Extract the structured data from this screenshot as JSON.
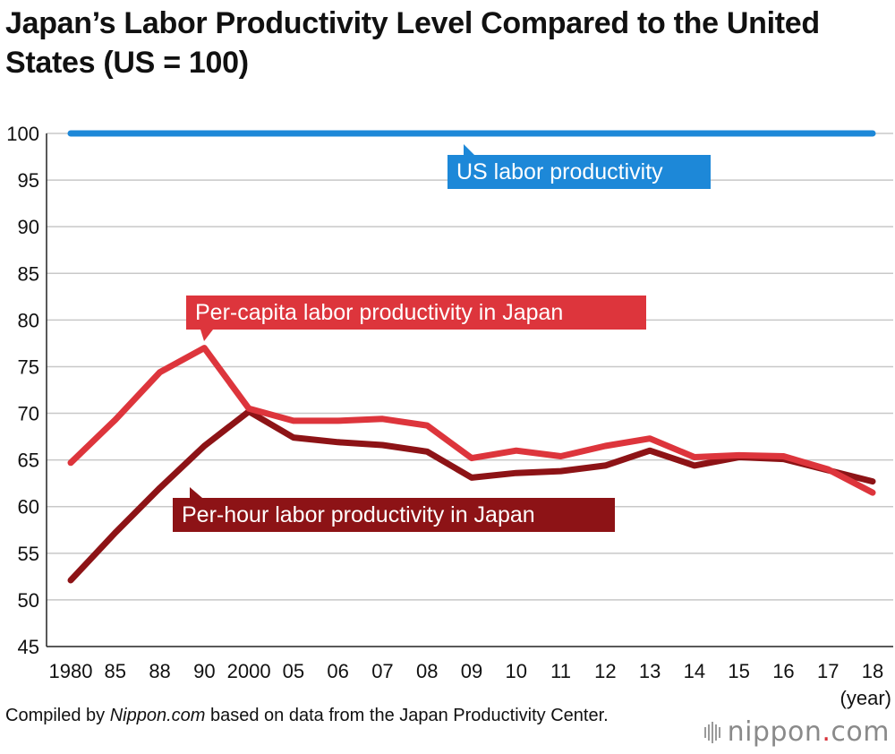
{
  "title": "Japan’s Labor Productivity Level Compared to the United States (US = 100)",
  "chart_data": {
    "type": "line",
    "title": "Japan’s Labor Productivity Level Compared to the United States (US = 100)",
    "xlabel": "(year)",
    "ylabel": "",
    "ylim": [
      45,
      100
    ],
    "yticks": [
      100,
      95,
      90,
      85,
      80,
      75,
      70,
      65,
      60,
      55,
      50,
      45
    ],
    "categories": [
      "1980",
      "85",
      "88",
      "90",
      "2000",
      "05",
      "06",
      "07",
      "08",
      "09",
      "10",
      "11",
      "12",
      "13",
      "14",
      "15",
      "16",
      "17",
      "18"
    ],
    "series": [
      {
        "name": "US labor productivity",
        "color": "#1d88d8",
        "values": [
          100,
          100,
          100,
          100,
          100,
          100,
          100,
          100,
          100,
          100,
          100,
          100,
          100,
          100,
          100,
          100,
          100,
          100,
          100
        ]
      },
      {
        "name": "Per-capita labor productivity in Japan",
        "color": "#dd353c",
        "values": [
          64.7,
          69.3,
          74.4,
          77.0,
          70.5,
          69.2,
          69.2,
          69.4,
          68.7,
          65.2,
          66.0,
          65.4,
          66.5,
          67.3,
          65.3,
          65.5,
          65.4,
          64.0,
          61.5
        ]
      },
      {
        "name": "Per-hour labor productivity in Japan",
        "color": "#8d1316",
        "values": [
          52.1,
          57.2,
          62.0,
          66.5,
          70.2,
          67.4,
          66.9,
          66.6,
          65.9,
          63.1,
          63.6,
          63.8,
          64.4,
          66.0,
          64.4,
          65.3,
          65.1,
          63.9,
          62.7
        ]
      }
    ],
    "annotations": [
      "US labor productivity",
      "Per-capita labor productivity in Japan",
      "Per-hour labor productivity in Japan"
    ]
  },
  "footer": {
    "source_prefix": "Compiled by ",
    "source_italic": "Nippon.com",
    "source_suffix": " based on data from the Japan Productivity Center."
  },
  "logo": {
    "name": "nippon",
    "dot": ".",
    "tld": "com"
  }
}
